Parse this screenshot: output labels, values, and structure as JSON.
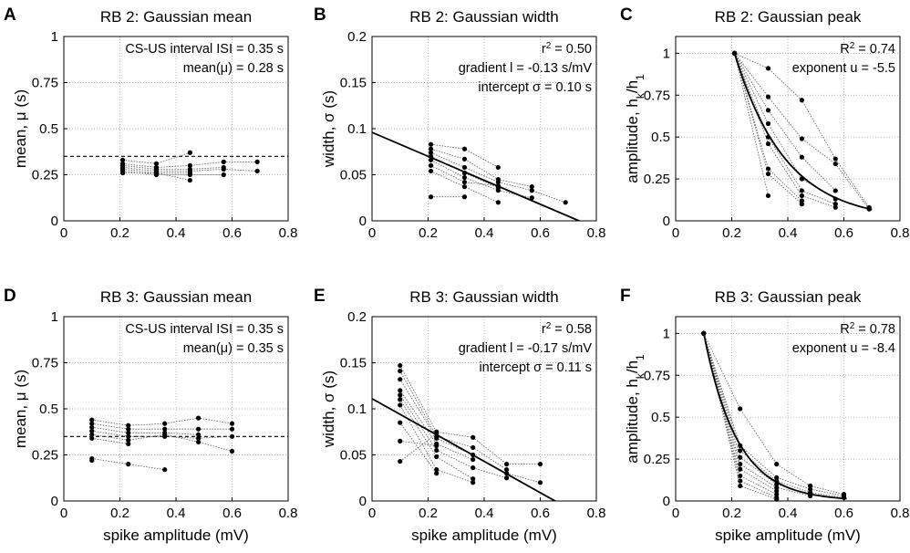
{
  "figure": {
    "xlabel": "spike amplitude (mV)"
  },
  "chart_data": [
    {
      "id": "A",
      "letter": "A",
      "type": "scatter",
      "title": "RB 2: Gaussian mean",
      "ylabel_parts": [
        "mean, ",
        "μ",
        " (s)"
      ],
      "xlabel": "",
      "xlim": [
        0,
        0.8
      ],
      "ylim": [
        0,
        1
      ],
      "xticks": [
        0,
        0.2,
        0.4,
        0.6,
        0.8
      ],
      "xtick_labels": [
        "0",
        "0.2",
        "0.4",
        "0.6",
        "0.8"
      ],
      "yticks": [
        0,
        0.25,
        0.5,
        0.75,
        1
      ],
      "ytick_labels": [
        "0",
        "0.25",
        "0.5",
        "0.75",
        "1"
      ],
      "grid": true,
      "annotations": [
        "CS-US interval ISI = 0.35 s",
        "mean(μ) = 0.28 s"
      ],
      "ref_line": {
        "y": 0.35,
        "style": "dashed",
        "color": "#000000"
      },
      "series": [
        {
          "x": [
            0.21,
            0.33,
            0.45
          ],
          "y": [
            0.33,
            0.31,
            0.37
          ]
        },
        {
          "x": [
            0.21,
            0.33,
            0.45,
            0.57,
            0.69
          ],
          "y": [
            0.31,
            0.29,
            0.3,
            0.32,
            0.32
          ]
        },
        {
          "x": [
            0.21,
            0.33,
            0.45,
            0.57
          ],
          "y": [
            0.3,
            0.28,
            0.28,
            0.29
          ]
        },
        {
          "x": [
            0.21,
            0.33,
            0.45,
            0.57,
            0.69
          ],
          "y": [
            0.29,
            0.27,
            0.27,
            0.28,
            0.27
          ]
        },
        {
          "x": [
            0.21,
            0.33,
            0.45
          ],
          "y": [
            0.28,
            0.26,
            0.26
          ]
        },
        {
          "x": [
            0.21,
            0.33,
            0.45,
            0.57
          ],
          "y": [
            0.27,
            0.25,
            0.25,
            0.25
          ]
        },
        {
          "x": [
            0.21,
            0.33,
            0.45
          ],
          "y": [
            0.26,
            0.26,
            0.22
          ]
        }
      ]
    },
    {
      "id": "B",
      "letter": "B",
      "type": "scatter",
      "title": "RB 2: Gaussian width",
      "ylabel_parts": [
        "width, ",
        "σ",
        " (s)"
      ],
      "xlabel": "",
      "xlim": [
        0,
        0.8
      ],
      "ylim": [
        0,
        0.2
      ],
      "xticks": [
        0,
        0.2,
        0.4,
        0.6,
        0.8
      ],
      "xtick_labels": [
        "0",
        "0.2",
        "0.4",
        "0.6",
        "0.8"
      ],
      "yticks": [
        0,
        0.05,
        0.1,
        0.15,
        0.2
      ],
      "ytick_labels": [
        "0",
        "0.05",
        "0.1",
        "0.15",
        "0.2"
      ],
      "grid": true,
      "annotations": [
        {
          "parts": [
            "r",
            "2",
            " = 0.50"
          ],
          "sup": 1
        },
        "gradient l = -0.13 s/mV",
        "intercept σ = 0.10 s"
      ],
      "fit": {
        "x": [
          0,
          0.8
        ],
        "y": [
          0.096,
          -0.008
        ]
      },
      "series": [
        {
          "x": [
            0.21,
            0.33,
            0.45
          ],
          "y": [
            0.083,
            0.078,
            0.058
          ]
        },
        {
          "x": [
            0.21,
            0.33,
            0.45,
            0.57
          ],
          "y": [
            0.078,
            0.067,
            0.045,
            0.037
          ]
        },
        {
          "x": [
            0.21,
            0.33,
            0.45,
            0.57,
            0.69
          ],
          "y": [
            0.074,
            0.058,
            0.042,
            0.033,
            0.02
          ]
        },
        {
          "x": [
            0.21,
            0.33,
            0.45
          ],
          "y": [
            0.07,
            0.052,
            0.036
          ]
        },
        {
          "x": [
            0.21,
            0.33,
            0.45,
            0.57
          ],
          "y": [
            0.066,
            0.047,
            0.033,
            0.025
          ]
        },
        {
          "x": [
            0.21,
            0.33,
            0.45
          ],
          "y": [
            0.06,
            0.042,
            0.038
          ]
        },
        {
          "x": [
            0.21,
            0.33,
            0.45
          ],
          "y": [
            0.054,
            0.037,
            0.02
          ]
        },
        {
          "x": [
            0.21,
            0.33
          ],
          "y": [
            0.026,
            0.026
          ]
        }
      ]
    },
    {
      "id": "C",
      "letter": "C",
      "type": "scatter",
      "title": "RB 2: Gaussian peak",
      "ylabel_parts": [
        "amplitude, h",
        "k",
        "/h",
        "1"
      ],
      "ylabel_sub": [
        1,
        3
      ],
      "xlabel": "",
      "xlim": [
        0,
        0.8
      ],
      "ylim": [
        0,
        1.1
      ],
      "xticks": [
        0,
        0.2,
        0.4,
        0.6,
        0.8
      ],
      "xtick_labels": [
        "0",
        "0.2",
        "0.4",
        "0.6",
        "0.8"
      ],
      "yticks": [
        0,
        0.25,
        0.5,
        0.75,
        1
      ],
      "ytick_labels": [
        "0",
        "0.25",
        "0.5",
        "0.75",
        "1"
      ],
      "grid": true,
      "annotations": [
        {
          "parts": [
            "R",
            "2",
            " = 0.74"
          ],
          "sup": 1
        },
        "exponent u = -5.5"
      ],
      "fit_exp": {
        "x0": 0.21,
        "u": -5.5,
        "xmax": 0.7
      },
      "series": [
        {
          "x": [
            0.21,
            0.33,
            0.45,
            0.57,
            0.69
          ],
          "y": [
            1,
            0.91,
            0.72,
            0.37,
            0.08
          ]
        },
        {
          "x": [
            0.21,
            0.33,
            0.45,
            0.57,
            0.69
          ],
          "y": [
            1,
            0.74,
            0.49,
            0.34,
            0.07
          ]
        },
        {
          "x": [
            0.21,
            0.33,
            0.45,
            0.57
          ],
          "y": [
            1,
            0.66,
            0.38,
            0.18
          ]
        },
        {
          "x": [
            0.21,
            0.33,
            0.45,
            0.57
          ],
          "y": [
            1,
            0.58,
            0.25,
            0.13
          ]
        },
        {
          "x": [
            0.21,
            0.33,
            0.45,
            0.57
          ],
          "y": [
            1,
            0.5,
            0.18,
            0.1
          ]
        },
        {
          "x": [
            0.21,
            0.33,
            0.45,
            0.57
          ],
          "y": [
            1,
            0.46,
            0.15,
            0.08
          ]
        },
        {
          "x": [
            0.21,
            0.33,
            0.45
          ],
          "y": [
            1,
            0.31,
            0.12
          ]
        },
        {
          "x": [
            0.21,
            0.33,
            0.45
          ],
          "y": [
            1,
            0.28,
            0.1
          ]
        },
        {
          "x": [
            0.21,
            0.33
          ],
          "y": [
            1,
            0.15
          ]
        }
      ]
    },
    {
      "id": "D",
      "letter": "D",
      "type": "scatter",
      "title": "RB 3: Gaussian mean",
      "ylabel_parts": [
        "mean, ",
        "μ",
        " (s)"
      ],
      "xlabel": "spike amplitude (mV)",
      "xlim": [
        0,
        0.8
      ],
      "ylim": [
        0,
        1
      ],
      "xticks": [
        0,
        0.2,
        0.4,
        0.6,
        0.8
      ],
      "xtick_labels": [
        "0",
        "0.2",
        "0.4",
        "0.6",
        "0.8"
      ],
      "yticks": [
        0,
        0.25,
        0.5,
        0.75,
        1
      ],
      "ytick_labels": [
        "0",
        "0.25",
        "0.5",
        "0.75",
        "1"
      ],
      "grid": true,
      "annotations": [
        "CS-US interval ISI = 0.35 s",
        "mean(μ) = 0.35 s"
      ],
      "ref_line": {
        "y": 0.35,
        "style": "dashed",
        "color": "#000000"
      },
      "series": [
        {
          "x": [
            0.1,
            0.23,
            0.36,
            0.48,
            0.6
          ],
          "y": [
            0.44,
            0.41,
            0.42,
            0.45,
            0.42
          ]
        },
        {
          "x": [
            0.1,
            0.23,
            0.36,
            0.48,
            0.6
          ],
          "y": [
            0.42,
            0.39,
            0.39,
            0.39,
            0.39
          ]
        },
        {
          "x": [
            0.1,
            0.23,
            0.36,
            0.48
          ],
          "y": [
            0.4,
            0.37,
            0.37,
            0.36
          ]
        },
        {
          "x": [
            0.1,
            0.23,
            0.36,
            0.48,
            0.6
          ],
          "y": [
            0.38,
            0.35,
            0.35,
            0.34,
            0.35
          ]
        },
        {
          "x": [
            0.1,
            0.23,
            0.36,
            0.48,
            0.6
          ],
          "y": [
            0.36,
            0.33,
            0.36,
            0.32,
            0.27
          ]
        },
        {
          "x": [
            0.1,
            0.23
          ],
          "y": [
            0.34,
            0.31
          ]
        },
        {
          "x": [
            0.1,
            0.23,
            0.36
          ],
          "y": [
            0.23,
            0.2,
            0.17
          ]
        },
        {
          "x": [
            0.1
          ],
          "y": [
            0.22
          ]
        }
      ]
    },
    {
      "id": "E",
      "letter": "E",
      "type": "scatter",
      "title": "RB 3: Gaussian width",
      "ylabel_parts": [
        "width, ",
        "σ",
        " (s)"
      ],
      "xlabel": "spike amplitude (mV)",
      "xlim": [
        0,
        0.8
      ],
      "ylim": [
        0,
        0.2
      ],
      "xticks": [
        0,
        0.2,
        0.4,
        0.6,
        0.8
      ],
      "xtick_labels": [
        "0",
        "0.2",
        "0.4",
        "0.6",
        "0.8"
      ],
      "yticks": [
        0,
        0.05,
        0.1,
        0.15,
        0.2
      ],
      "ytick_labels": [
        "0",
        "0.05",
        "0.1",
        "0.15",
        "0.2"
      ],
      "grid": true,
      "annotations": [
        {
          "parts": [
            "r",
            "2",
            " = 0.58"
          ],
          "sup": 1
        },
        "gradient l = -0.17 s/mV",
        "intercept σ = 0.11 s"
      ],
      "fit": {
        "x": [
          0,
          0.8
        ],
        "y": [
          0.111,
          -0.025
        ]
      },
      "series": [
        {
          "x": [
            0.1,
            0.23,
            0.36,
            0.48,
            0.6
          ],
          "y": [
            0.147,
            0.075,
            0.069,
            0.04,
            0.04
          ]
        },
        {
          "x": [
            0.1,
            0.23,
            0.36,
            0.48
          ],
          "y": [
            0.141,
            0.07,
            0.058,
            0.034
          ]
        },
        {
          "x": [
            0.1,
            0.23,
            0.36,
            0.48,
            0.6
          ],
          "y": [
            0.132,
            0.068,
            0.05,
            0.03,
            0.02
          ]
        },
        {
          "x": [
            0.1,
            0.23,
            0.36
          ],
          "y": [
            0.12,
            0.062,
            0.045
          ]
        },
        {
          "x": [
            0.1,
            0.23,
            0.36,
            0.48
          ],
          "y": [
            0.115,
            0.055,
            0.036,
            0.025
          ]
        },
        {
          "x": [
            0.1,
            0.23,
            0.36
          ],
          "y": [
            0.11,
            0.048,
            0.024
          ]
        },
        {
          "x": [
            0.1,
            0.23,
            0.36
          ],
          "y": [
            0.104,
            0.034,
            0.02
          ]
        },
        {
          "x": [
            0.1,
            0.23
          ],
          "y": [
            0.085,
            0.03
          ]
        },
        {
          "x": [
            0.1,
            0.23
          ],
          "y": [
            0.065,
            0.06
          ]
        },
        {
          "x": [
            0.1,
            0.23
          ],
          "y": [
            0.043,
            0.073
          ]
        }
      ]
    },
    {
      "id": "F",
      "letter": "F",
      "type": "scatter",
      "title": "RB 3: Gaussian peak",
      "ylabel_parts": [
        "amplitude, h",
        "k",
        "/h",
        "1"
      ],
      "ylabel_sub": [
        1,
        3
      ],
      "xlabel": "spike amplitude (mV)",
      "xlim": [
        0,
        0.8
      ],
      "ylim": [
        0,
        1.1
      ],
      "xticks": [
        0,
        0.2,
        0.4,
        0.6,
        0.8
      ],
      "xtick_labels": [
        "0",
        "0.2",
        "0.4",
        "0.6",
        "0.8"
      ],
      "yticks": [
        0,
        0.25,
        0.5,
        0.75,
        1
      ],
      "ytick_labels": [
        "0",
        "0.25",
        "0.5",
        "0.75",
        "1"
      ],
      "grid": true,
      "annotations": [
        {
          "parts": [
            "R",
            "2",
            " = 0.78"
          ],
          "sup": 1
        },
        "exponent u = -8.4"
      ],
      "fit_exp": {
        "x0": 0.1,
        "u": -8.4,
        "xmax": 0.61
      },
      "series": [
        {
          "x": [
            0.1,
            0.23,
            0.36,
            0.48,
            0.6
          ],
          "y": [
            1,
            0.55,
            0.22,
            0.09,
            0.04
          ]
        },
        {
          "x": [
            0.1,
            0.23,
            0.36,
            0.48,
            0.6
          ],
          "y": [
            1,
            0.33,
            0.14,
            0.07,
            0.03
          ]
        },
        {
          "x": [
            0.1,
            0.23,
            0.36,
            0.48,
            0.6
          ],
          "y": [
            1,
            0.3,
            0.12,
            0.05,
            0.02
          ]
        },
        {
          "x": [
            0.1,
            0.23,
            0.36,
            0.48
          ],
          "y": [
            1,
            0.26,
            0.1,
            0.04
          ]
        },
        {
          "x": [
            0.1,
            0.23,
            0.36,
            0.48
          ],
          "y": [
            1,
            0.22,
            0.08,
            0.03
          ]
        },
        {
          "x": [
            0.1,
            0.23,
            0.36
          ],
          "y": [
            1,
            0.19,
            0.06
          ]
        },
        {
          "x": [
            0.1,
            0.23,
            0.36
          ],
          "y": [
            1,
            0.15,
            0.04
          ]
        },
        {
          "x": [
            0.1,
            0.23,
            0.36
          ],
          "y": [
            1,
            0.12,
            0.02
          ]
        },
        {
          "x": [
            0.1,
            0.23,
            0.36
          ],
          "y": [
            1,
            0.09,
            0.01
          ]
        }
      ]
    }
  ]
}
